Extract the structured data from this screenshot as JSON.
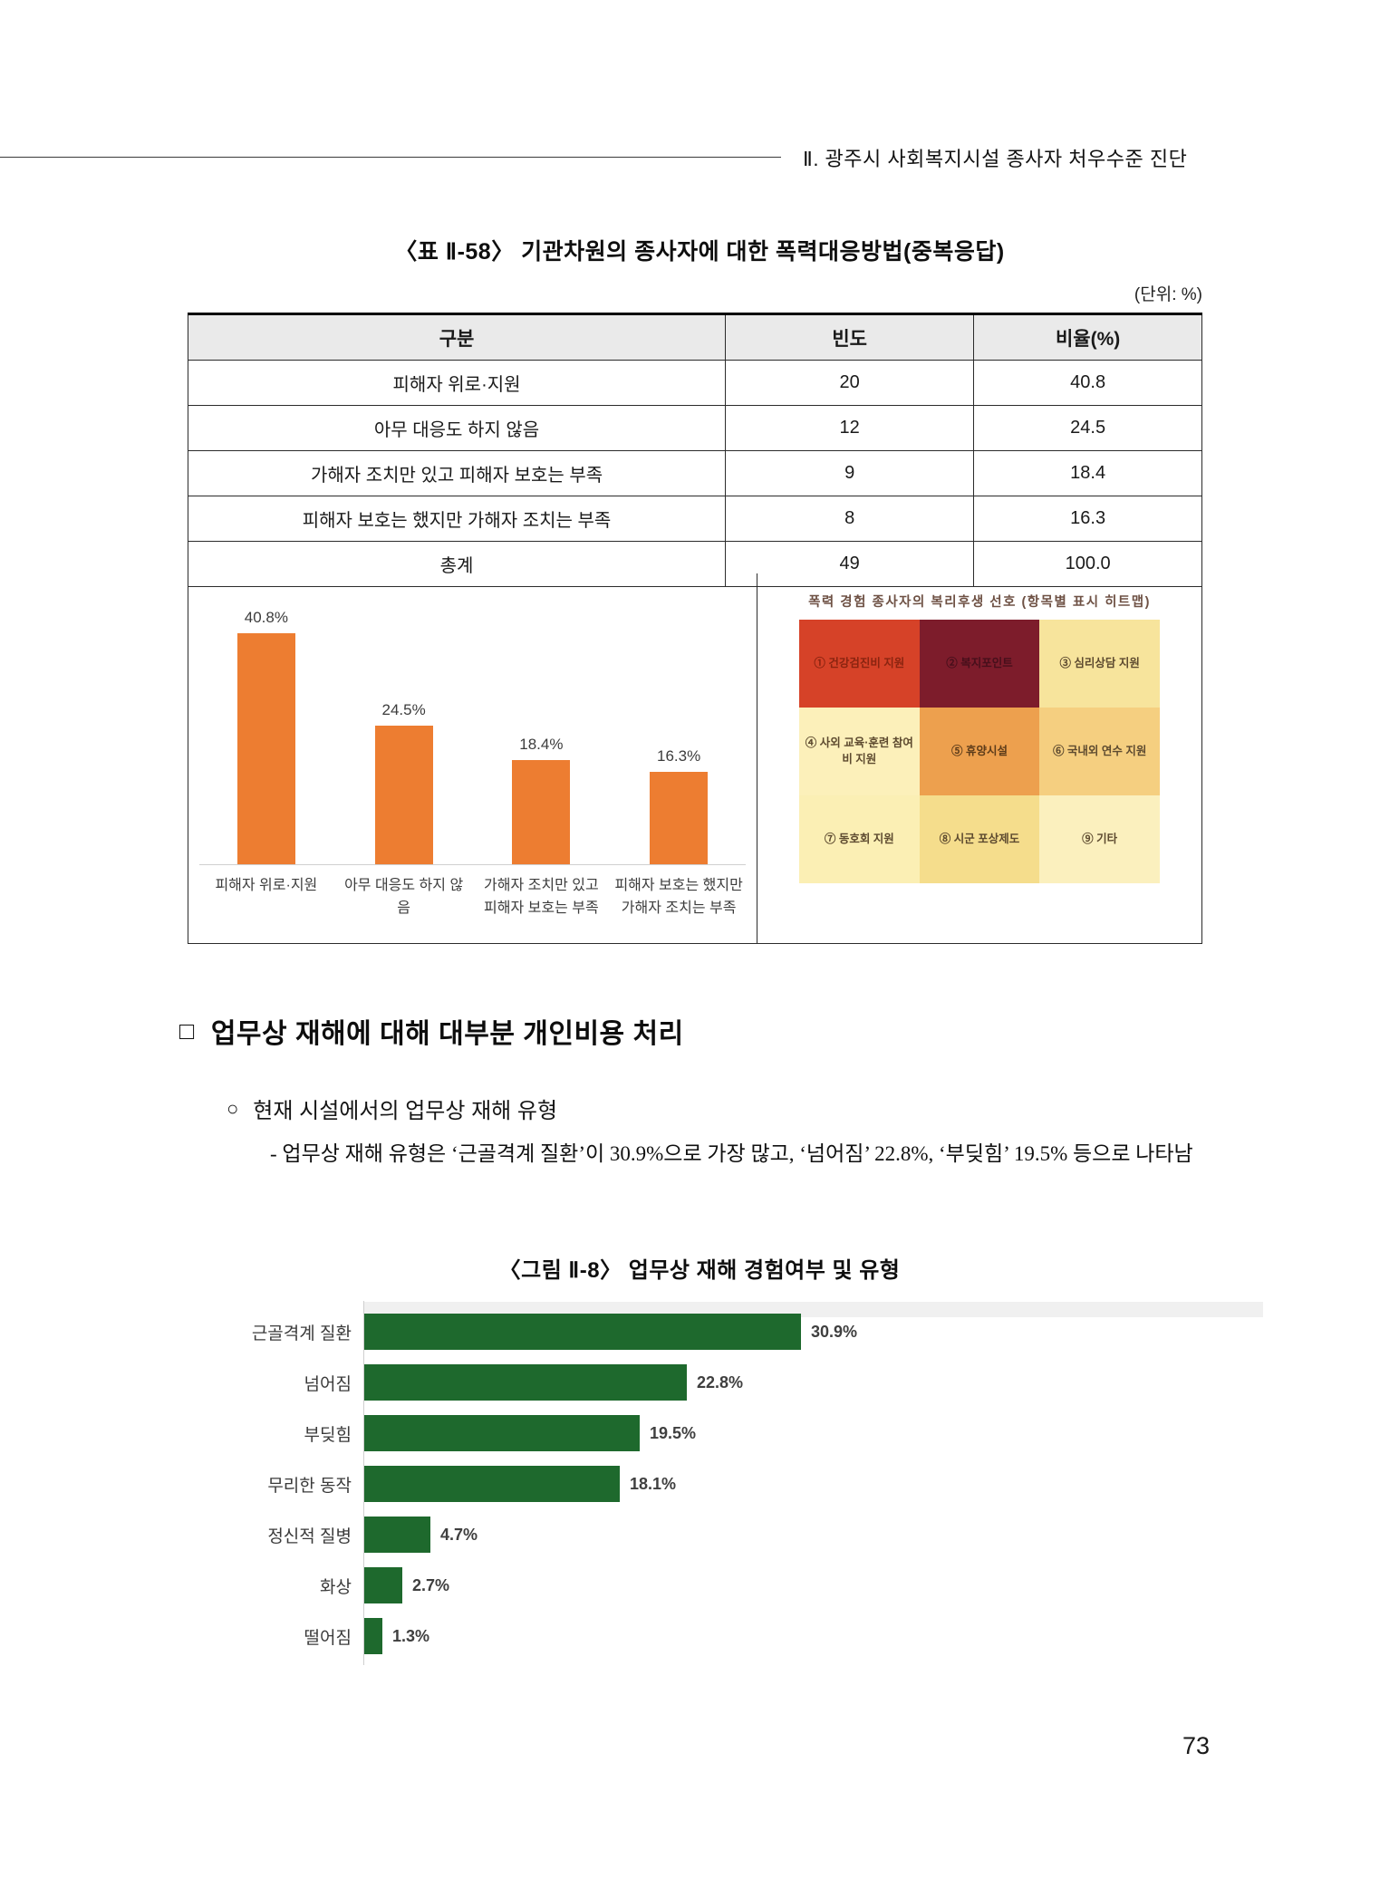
{
  "header": {
    "title": "Ⅱ. 광주시 사회복지시설 종사자 처우수준 진단"
  },
  "table": {
    "title": "〈표 Ⅱ-58〉 기관차원의 종사자에 대한 폭력대응방법(중복응답)",
    "unit_note": "(단위: %)",
    "columns": [
      "구분",
      "빈도",
      "비율(%)"
    ],
    "rows": [
      {
        "label": "피해자 위로·지원",
        "freq": "20",
        "pct": "40.8"
      },
      {
        "label": "아무 대응도 하지 않음",
        "freq": "12",
        "pct": "24.5"
      },
      {
        "label": "가해자 조치만 있고 피해자 보호는 부족",
        "freq": "9",
        "pct": "18.4"
      },
      {
        "label": "피해자 보호는 했지만 가해자 조치는 부족",
        "freq": "8",
        "pct": "16.3"
      },
      {
        "label": "총계",
        "freq": "49",
        "pct": "100.0"
      }
    ]
  },
  "chart_data": [
    {
      "type": "bar",
      "orientation": "vertical",
      "categories": [
        "피해자 위로·지원",
        "아무 대응도 하지 않음",
        "가해자 조치만 있고 피해자 보호는 부족",
        "피해자 보호는 했지만 가해자 조치는 부족"
      ],
      "values": [
        40.8,
        24.5,
        18.4,
        16.3
      ],
      "data_labels": [
        "40.8%",
        "24.5%",
        "18.4%",
        "16.3%"
      ],
      "bar_color": "#ED7D31",
      "ylim": [
        0,
        45
      ],
      "grid": false,
      "legend": "none"
    },
    {
      "type": "heatmap",
      "title": "폭력 경험 종사자의 복리후생 선호 (항목별 표시 히트맵)",
      "rows": 3,
      "cols": 3,
      "cells": [
        {
          "label": "① 건강검진비 지원",
          "color": "#D64228",
          "text_color": "#8a2410"
        },
        {
          "label": "② 복지포인트",
          "color": "#7D1C2B",
          "text_color": "#470f1b"
        },
        {
          "label": "③ 심리상담 지원",
          "color": "#F7E49C",
          "text_color": "#5d4a2f"
        },
        {
          "label": "④ 사외 교육·훈련 참여비 지원",
          "color": "#FCF0BA",
          "text_color": "#5d4a2f"
        },
        {
          "label": "⑤ 휴양시설",
          "color": "#EDA04E",
          "text_color": "#5d3c1a"
        },
        {
          "label": "⑥ 국내외 연수 지원",
          "color": "#F5CF80",
          "text_color": "#5d4a2f"
        },
        {
          "label": "⑦ 동호회 지원",
          "color": "#FBEFB4",
          "text_color": "#5d4a2f"
        },
        {
          "label": "⑧ 시군 포상제도",
          "color": "#F5DD8C",
          "text_color": "#5d4a2f"
        },
        {
          "label": "⑨ 기타",
          "color": "#FBF0BE",
          "text_color": "#5d4a2f"
        }
      ]
    },
    {
      "type": "bar",
      "orientation": "horizontal",
      "title": "〈그림 Ⅱ-8〉 업무상 재해 경험여부 및 유형",
      "categories": [
        "근골격계 질환",
        "넘어짐",
        "부딪힘",
        "무리한 동작",
        "정신적 질병",
        "화상",
        "떨어짐"
      ],
      "values": [
        30.9,
        22.8,
        19.5,
        18.1,
        4.7,
        2.7,
        1.3
      ],
      "data_labels": [
        "30.9%",
        "22.8%",
        "19.5%",
        "18.1%",
        "4.7%",
        "2.7%",
        "1.3%"
      ],
      "bar_color": "#1E692D",
      "xlim": [
        0,
        35
      ],
      "grid": false,
      "legend": "none"
    }
  ],
  "section": {
    "bullet": "□",
    "heading": "업무상 재해에 대해 대부분 개인비용 처리",
    "sub_bullet": "○",
    "sub_heading": "현재 시설에서의 업무상 재해 유형",
    "dash": "-",
    "paragraph": "업무상 재해 유형은 ‘근골격계 질환’이 30.9%으로 가장 많고, ‘넘어짐’ 22.8%, ‘부딪힘’ 19.5% 등으로 나타남"
  },
  "page_number": "73"
}
